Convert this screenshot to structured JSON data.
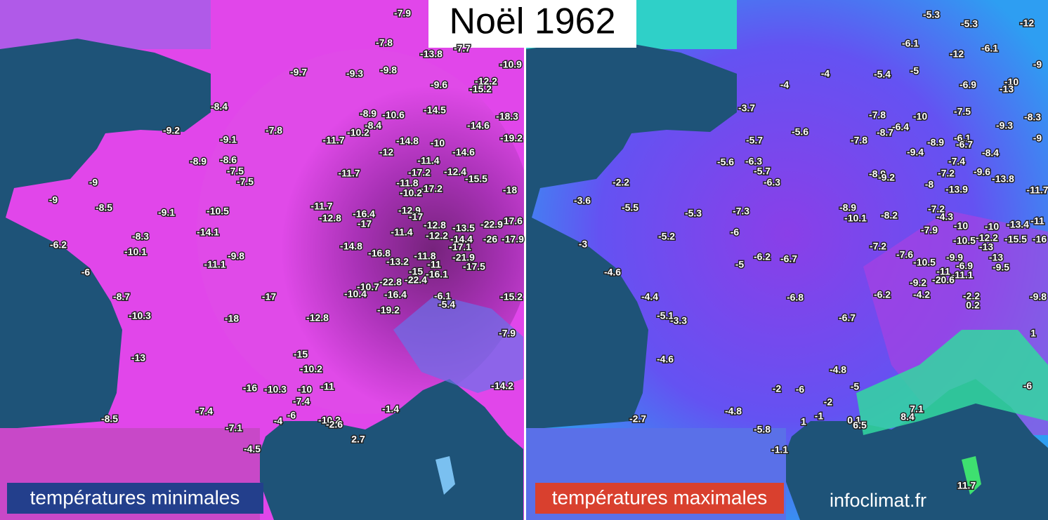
{
  "title": "Noël 1962",
  "maps": [
    {
      "caption": "températures minimales",
      "labels": [
        -7.9,
        -7.8,
        -13.8,
        -7.7,
        -10.9,
        -9.7,
        -9.3,
        -9.8,
        -9.6,
        -12.2,
        -15.2,
        -8.4,
        -8.9,
        -10.6,
        -14.5,
        -18.3,
        -8.4,
        -14.6,
        -9.2,
        -7.8,
        -10.2,
        -9.1,
        -11.7,
        -14.8,
        -10,
        -19.2,
        -12,
        -14.6,
        -8.9,
        -8.6,
        -11.4,
        -7.5,
        -11.7,
        -17.2,
        -12.4,
        -15.5,
        -9,
        -7.5,
        -11.8,
        -17.2,
        -10.2,
        -18,
        -9,
        -8.5,
        -9.1,
        -10.5,
        -11.7,
        -16.4,
        -12.8,
        -17,
        -12.9,
        -17,
        -17.6,
        -12.8,
        -13.5,
        -22.9,
        -14.1,
        -8.3,
        -11.4,
        -12.2,
        -14.4,
        -26,
        -17.9,
        -6.2,
        -14.8,
        -17.1,
        -10.1,
        -9.8,
        -16.8,
        -13.2,
        -11.8,
        -21.9,
        -11.1,
        -11,
        -17.5,
        -6,
        -15,
        -16.1,
        -22.8,
        -22.4,
        -8.7,
        -17,
        -10.7,
        -10.4,
        -16.4,
        -6.1,
        -5.4,
        -15.2,
        -10.3,
        -18,
        -12.8,
        -19.2,
        -7.9,
        -15,
        -13,
        -10.2,
        -16,
        -10.3,
        -10,
        -11,
        -14.2,
        -7.4,
        -7.4,
        -1.4,
        -8.5,
        -6,
        -4,
        -10.2,
        -2.6,
        -7.1,
        -4.5,
        2.7
      ]
    },
    {
      "caption": "températures maximales",
      "labels": [
        -5.3,
        -5.3,
        -12,
        -6.1,
        -12,
        -6.1,
        -9,
        -4,
        -5.4,
        -5,
        -4,
        -6.9,
        -10,
        -13,
        -3.7,
        -7.8,
        -10,
        -7.5,
        -8.3,
        -6.4,
        -9.3,
        -5.6,
        -8.7,
        -5.7,
        -7.8,
        -8.9,
        -6.1,
        -6.7,
        -9,
        -9.4,
        -8.4,
        -5.6,
        -6.3,
        -7.4,
        -5.7,
        -7.2,
        -9.6,
        -8.9,
        -9.2,
        -13.8,
        -6.3,
        -2.2,
        -8,
        -13.9,
        -11.7,
        -3.6,
        -5.5,
        -5.3,
        -7.3,
        -8.9,
        -7.2,
        -10.1,
        -8.2,
        -4.3,
        -11,
        -10,
        -10,
        -13.4,
        -7.9,
        -12.2,
        -15.5,
        -16,
        -5.2,
        -6,
        -10.5,
        -13,
        -3,
        -7.2,
        -7.6,
        -9.9,
        -13,
        -5,
        -6.2,
        -6.7,
        -10.5,
        -6.9,
        -9.5,
        -11,
        -11.1,
        -4.6,
        -9.2,
        -20.6,
        -4.4,
        -6.8,
        -6.2,
        -4.2,
        -2.2,
        0.2,
        -9.8,
        -5.1,
        -3.3,
        -6.7,
        1,
        -4.6,
        -4.8,
        -2,
        -6,
        -5,
        -6,
        -2,
        7.1,
        -4.8,
        -1,
        0.1,
        8.4,
        -2.7,
        1,
        6.5,
        -5.8,
        -1.1,
        11.7
      ]
    }
  ],
  "credit": "infoclimat.fr"
}
